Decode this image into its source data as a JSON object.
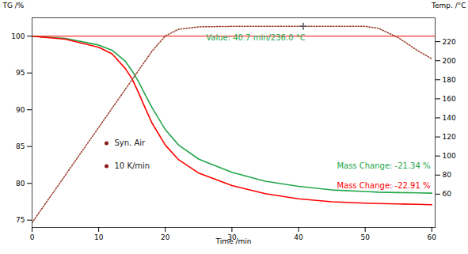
{
  "chart_data": {
    "type": "line",
    "x_label": "Time /min",
    "y_label": "TG /%",
    "y2_label": "Temp. /°C",
    "x": [
      0,
      5,
      10,
      12,
      14,
      15,
      16,
      17,
      18,
      20,
      22,
      25,
      30,
      35,
      40,
      45,
      50,
      52,
      55,
      58,
      60
    ],
    "series": [
      {
        "color": "#22a64a",
        "values": [
          100,
          99.7,
          98.8,
          98.1,
          96.6,
          95.3,
          93.8,
          92.0,
          90.3,
          87.3,
          85.2,
          83.3,
          81.5,
          80.3,
          79.6,
          79.1,
          78.9,
          78.8,
          78.75,
          78.7,
          78.66
        ]
      },
      {
        "color": "#ff0000",
        "values": [
          100,
          99.6,
          98.5,
          97.6,
          95.6,
          94.2,
          92.3,
          90.2,
          88.2,
          85.2,
          83.2,
          81.4,
          79.7,
          78.6,
          77.9,
          77.5,
          77.3,
          77.25,
          77.2,
          77.15,
          77.1
        ]
      },
      {
        "color": "#9a3b2a",
        "axis": "y2",
        "line_style": "dotted",
        "values": [
          30,
          80,
          130,
          150,
          170,
          180,
          190,
          200,
          210,
          226,
          233,
          235.5,
          236,
          236,
          236,
          236,
          236,
          234,
          224,
          210,
          202
        ]
      }
    ],
    "xlim": [
      0,
      60.5
    ],
    "xticks": [
      0,
      10,
      20,
      30,
      40,
      50,
      60
    ],
    "ylim": [
      74,
      102.5
    ],
    "yticks": [
      75,
      80,
      85,
      90,
      95,
      100
    ],
    "y2lim": [
      25,
      245
    ],
    "y2ticks": [
      60,
      80,
      100,
      120,
      140,
      160,
      180,
      200,
      220
    ],
    "grid": false,
    "reference_line": {
      "y": 100,
      "color": "#ff0000"
    },
    "annotations": [
      {
        "text": "Value: 40.7 min/236.0 °C",
        "x": 40.7,
        "y": 236,
        "axis": "y2",
        "color": "#22a64a"
      },
      {
        "text": "Mass Change: -21.34 %",
        "color": "#22a64a"
      },
      {
        "text": "Mass Change: -22.91 %",
        "color": "#ff0000"
      }
    ],
    "notes": [
      "Syn. Air",
      "10 K/min"
    ],
    "notes_color": "#8b1a1a"
  }
}
